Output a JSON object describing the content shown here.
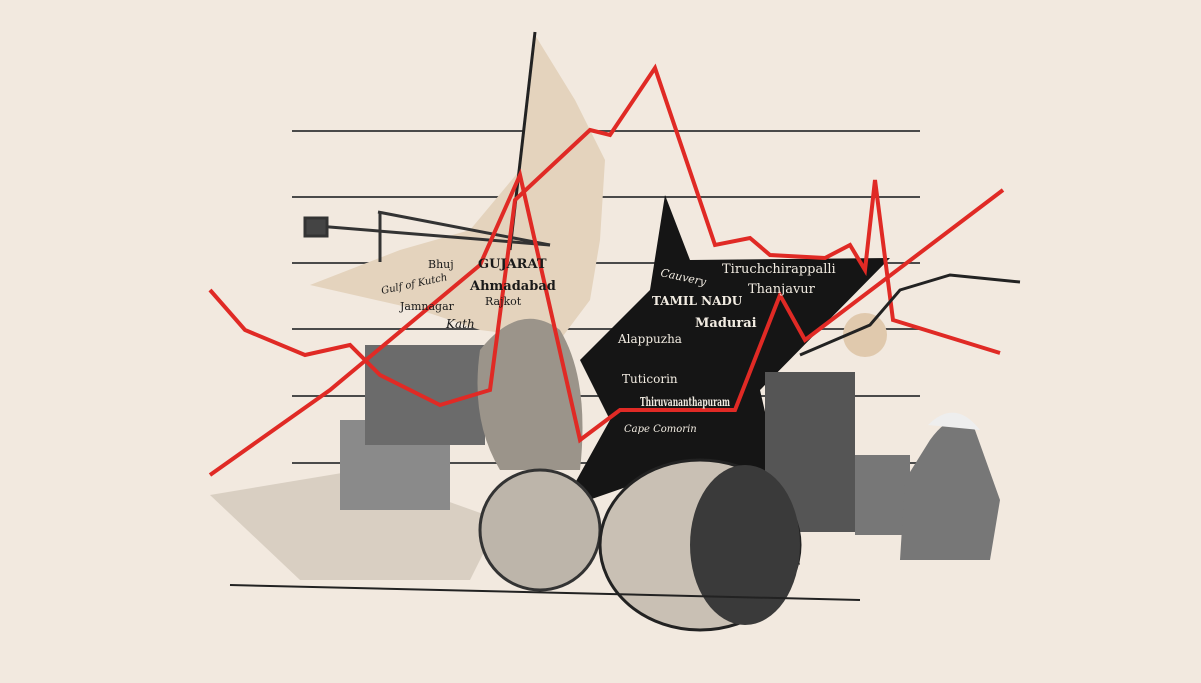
{
  "map_labels": {
    "gujarat": [
      "GUJARAT",
      "Ahmadabad",
      "Rajkot",
      "Jamnagar",
      "Gulf of Kutch",
      "Bhuj",
      "Kath"
    ],
    "tamil_nadu": [
      "TAMIL NADU",
      "Madurai",
      "Tiruchchirappalli",
      "Thanjavur",
      "Cauvery",
      "Alappuzha",
      "Tuticorin",
      "Thiruvananthapuram",
      "Cape Comorin"
    ]
  }
}
